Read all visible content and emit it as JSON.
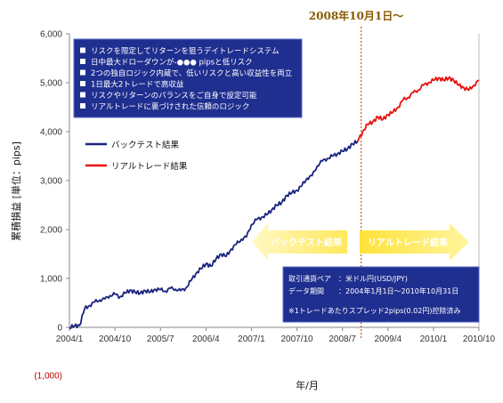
{
  "colors": {
    "backtest": "#1a237e",
    "live": "#e8100c",
    "box": "#1f2f8f",
    "arrow_left": "#fff176",
    "arrow_right": "#ffe23a",
    "divider": "#cc3300",
    "period_title": "#8a5a00",
    "negative_tick": "#c00000"
  },
  "features": {
    "items": [
      "リスクを限定してリターンを狙うデイトレードシステム",
      "日中最大ドローダウンが-●●● pipsと低リスク",
      "2つの独自ロジック内蔵で、低いリスクと高い収益性を両立",
      "1日最大2トレードで高収益",
      "リスクやリターンのバランスをご自身で設定可能",
      "リアルトレードに裏づけされた信頼のロジック"
    ]
  },
  "arrows": {
    "left_label": "バックテスト結果",
    "right_label": "リアルトレード結果"
  },
  "info": {
    "lines": [
      "取引通貨ペア　：米ドル円(USD/JPY)",
      "データ期間　　：2004年1月1日～2010年10月31日",
      "※1トレードあたりスプレッド2pips(0.02円)控除済み"
    ]
  },
  "chart_data": {
    "type": "line",
    "period_label": "2008年10月1日～",
    "xlabel": "年/月",
    "ylabel": "累積損益 [単位：pips]",
    "ylim": [
      -1000,
      6000
    ],
    "yticks": [
      "(1,000)",
      "0",
      "1,000",
      "2,000",
      "3,000",
      "4,000",
      "5,000",
      "6,000"
    ],
    "xticks": [
      "2004/1",
      "2004/10",
      "2005/7",
      "2006/4",
      "2007/1",
      "2007/10",
      "2008/7",
      "2009/4",
      "2010/1",
      "2010/10"
    ],
    "x_range": [
      "2004/1",
      "2010/10"
    ],
    "divider_at": "2008/10",
    "grid": false,
    "legend_position": "upper-left",
    "series": [
      {
        "name": "バックテスト結果",
        "points": [
          [
            "2004/1",
            0
          ],
          [
            "2004/2",
            30
          ],
          [
            "2004/3",
            40
          ],
          [
            "2004/4",
            380
          ],
          [
            "2004/5",
            450
          ],
          [
            "2004/6",
            520
          ],
          [
            "2004/7",
            560
          ],
          [
            "2004/8",
            580
          ],
          [
            "2004/9",
            650
          ],
          [
            "2004/10",
            680
          ],
          [
            "2004/11",
            620
          ],
          [
            "2004/12",
            700
          ],
          [
            "2005/1",
            760
          ],
          [
            "2005/2",
            720
          ],
          [
            "2005/3",
            700
          ],
          [
            "2005/4",
            750
          ],
          [
            "2005/5",
            720
          ],
          [
            "2005/6",
            780
          ],
          [
            "2005/7",
            770
          ],
          [
            "2005/8",
            740
          ],
          [
            "2005/9",
            800
          ],
          [
            "2005/10",
            780
          ],
          [
            "2005/11",
            750
          ],
          [
            "2005/12",
            800
          ],
          [
            "2006/1",
            950
          ],
          [
            "2006/2",
            1100
          ],
          [
            "2006/3",
            1200
          ],
          [
            "2006/4",
            1300
          ],
          [
            "2006/5",
            1250
          ],
          [
            "2006/6",
            1400
          ],
          [
            "2006/7",
            1500
          ],
          [
            "2006/8",
            1450
          ],
          [
            "2006/9",
            1600
          ],
          [
            "2006/10",
            1700
          ],
          [
            "2006/11",
            1800
          ],
          [
            "2006/12",
            1850
          ],
          [
            "2007/1",
            2100
          ],
          [
            "2007/2",
            2200
          ],
          [
            "2007/3",
            2250
          ],
          [
            "2007/4",
            2300
          ],
          [
            "2007/5",
            2400
          ],
          [
            "2007/6",
            2500
          ],
          [
            "2007/7",
            2550
          ],
          [
            "2007/8",
            2700
          ],
          [
            "2007/9",
            2750
          ],
          [
            "2007/10",
            2800
          ],
          [
            "2007/11",
            2900
          ],
          [
            "2007/12",
            3050
          ],
          [
            "2008/1",
            3100
          ],
          [
            "2008/2",
            3300
          ],
          [
            "2008/3",
            3400
          ],
          [
            "2008/4",
            3450
          ],
          [
            "2008/5",
            3500
          ],
          [
            "2008/6",
            3550
          ],
          [
            "2008/7",
            3600
          ],
          [
            "2008/8",
            3650
          ],
          [
            "2008/9",
            3750
          ],
          [
            "2008/10",
            3800
          ]
        ]
      },
      {
        "name": "リアルトレード結果",
        "points": [
          [
            "2008/10",
            3800
          ],
          [
            "2008/11",
            4000
          ],
          [
            "2008/12",
            4150
          ],
          [
            "2009/1",
            4200
          ],
          [
            "2009/2",
            4300
          ],
          [
            "2009/3",
            4250
          ],
          [
            "2009/4",
            4350
          ],
          [
            "2009/5",
            4400
          ],
          [
            "2009/6",
            4500
          ],
          [
            "2009/7",
            4650
          ],
          [
            "2009/8",
            4700
          ],
          [
            "2009/9",
            4800
          ],
          [
            "2009/10",
            4850
          ],
          [
            "2009/11",
            4950
          ],
          [
            "2009/12",
            5000
          ],
          [
            "2010/1",
            5050
          ],
          [
            "2010/2",
            5100
          ],
          [
            "2010/3",
            5050
          ],
          [
            "2010/4",
            5100
          ],
          [
            "2010/5",
            5050
          ],
          [
            "2010/6",
            4950
          ],
          [
            "2010/7",
            4900
          ],
          [
            "2010/8",
            4850
          ],
          [
            "2010/9",
            4950
          ],
          [
            "2010/10",
            5050
          ]
        ]
      }
    ]
  }
}
